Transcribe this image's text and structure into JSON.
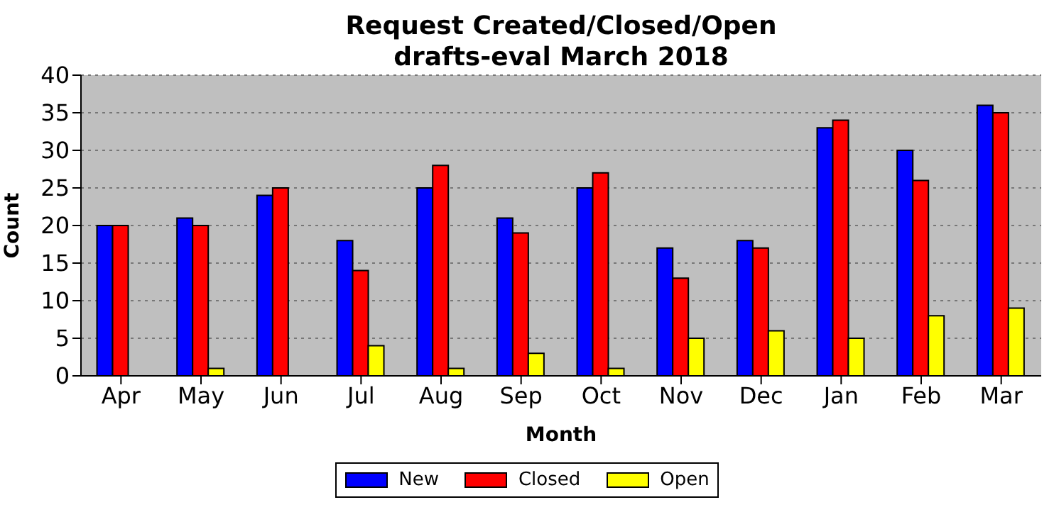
{
  "chart_data": {
    "type": "bar",
    "title": "Request Created/Closed/Open\ndrafts-eval March 2018",
    "xlabel": "Month",
    "ylabel": "Count",
    "categories": [
      "Apr",
      "May",
      "Jun",
      "Jul",
      "Aug",
      "Sep",
      "Oct",
      "Nov",
      "Dec",
      "Jan",
      "Feb",
      "Mar"
    ],
    "series": [
      {
        "name": "New",
        "color": "#0000ff",
        "values": [
          20,
          21,
          24,
          18,
          25,
          21,
          25,
          17,
          18,
          33,
          30,
          36
        ]
      },
      {
        "name": "Closed",
        "color": "#ff0000",
        "values": [
          20,
          20,
          25,
          14,
          28,
          19,
          27,
          13,
          17,
          34,
          26,
          35
        ]
      },
      {
        "name": "Open",
        "color": "#ffff00",
        "values": [
          0,
          1,
          0,
          4,
          1,
          3,
          1,
          5,
          6,
          5,
          8,
          9
        ]
      }
    ],
    "ylim": [
      0,
      40
    ],
    "yticks": [
      0,
      5,
      10,
      15,
      20,
      25,
      30,
      35,
      40
    ],
    "grid": "y",
    "legend": "bottom"
  }
}
